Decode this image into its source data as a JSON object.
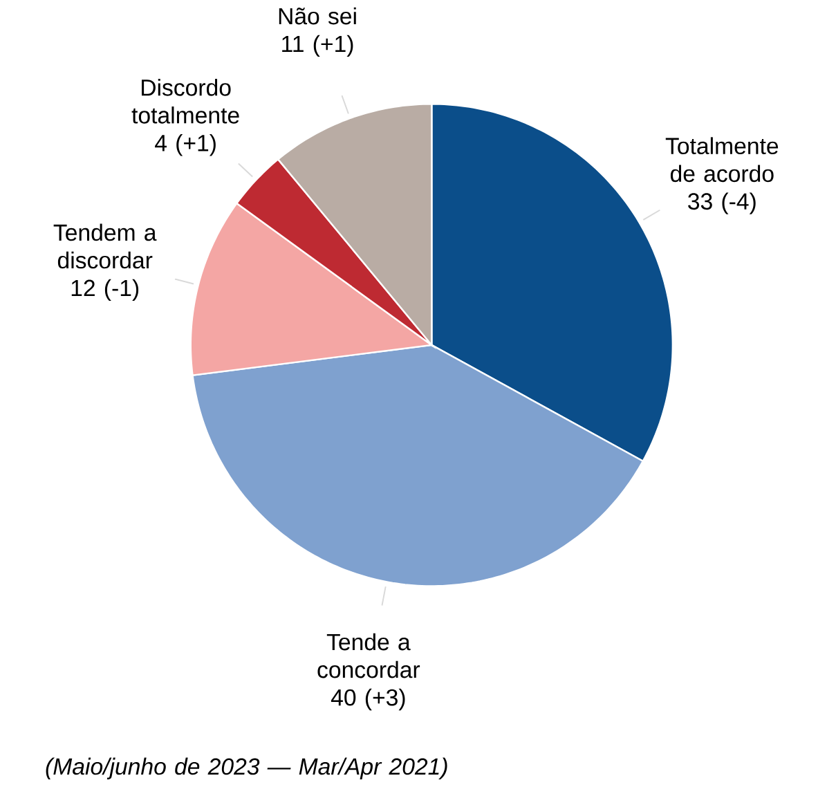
{
  "chart_data": {
    "type": "pie",
    "categories": [
      "Totalmente de acordo",
      "Tende a concordar",
      "Tendem a discordar",
      "Discordo totalmente",
      "Não sei"
    ],
    "values": [
      33,
      40,
      12,
      4,
      11
    ],
    "colors": [
      "#0b4e8a",
      "#7fa1cf",
      "#f4a6a4",
      "#be2a32",
      "#b9aca4"
    ],
    "value_labels": [
      "33 (-4)",
      "40 (+3)",
      "12 (-1)",
      "4 (+1)",
      "11 (+1)"
    ],
    "annotations": [
      "*(Maio/junho de 2023 — Mar/Apr 2021)*"
    ]
  }
}
